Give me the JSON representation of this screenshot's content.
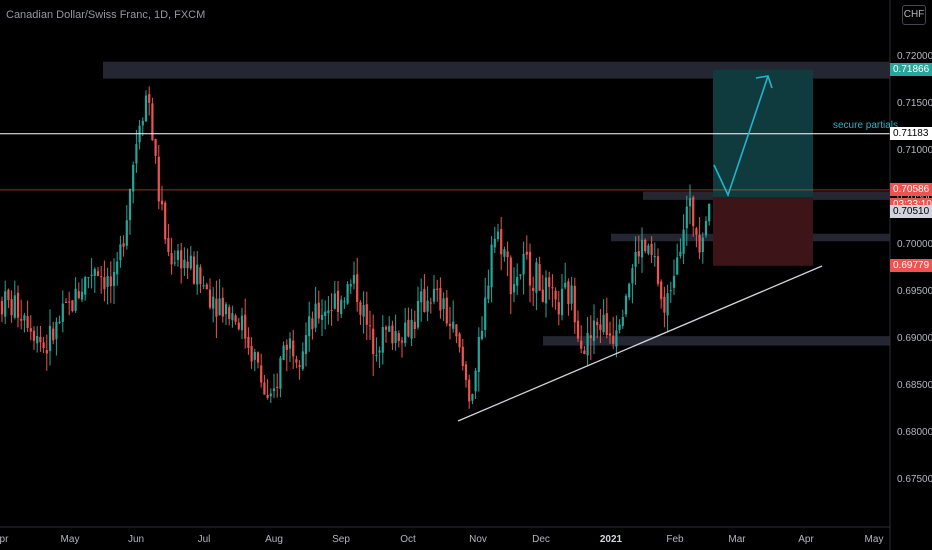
{
  "header": {
    "title": "Canadian Dollar/Swiss Franc, 1D, FXCM",
    "currency_badge": "CHF"
  },
  "price_axis": {
    "ticks": [
      "0.72000",
      "0.71500",
      "0.71000",
      "0.70500",
      "0.70000",
      "0.69500",
      "0.69000",
      "0.68500",
      "0.68000",
      "0.67500"
    ],
    "tags": [
      {
        "label": "0.71866",
        "bg": "#26a69a",
        "fg": "#ffffff",
        "kind": "target"
      },
      {
        "label": "0.71183",
        "bg": "#ffffff",
        "fg": "#000000",
        "kind": "horizontal-line"
      },
      {
        "label": "0.70586",
        "bg": "#ef5350",
        "fg": "#ffffff",
        "kind": "last-price"
      },
      {
        "label": "03:33:10",
        "bg": "#ef5350",
        "fg": "#ffffff",
        "kind": "countdown"
      },
      {
        "label": "0.70510",
        "bg": "#d1d4dc",
        "fg": "#000000",
        "kind": "entry"
      },
      {
        "label": "0.69779",
        "bg": "#ef5350",
        "fg": "#ffffff",
        "kind": "stop"
      }
    ]
  },
  "time_axis": {
    "labels": [
      "pr",
      "May",
      "Jun",
      "Jul",
      "Aug",
      "Sep",
      "Oct",
      "Nov",
      "Dec",
      "2021",
      "Feb",
      "Mar",
      "Apr",
      "May"
    ]
  },
  "annotations": {
    "secure_partials": "secure partials"
  },
  "colors": {
    "up": "#26a69a",
    "down": "#ef5350",
    "zone": "#2a2e39",
    "profit_zone": "#0f3b3f",
    "loss_zone": "#3d1518",
    "arrow": "#22b5c9",
    "trendline": "#d1d4dc"
  },
  "chart_data": {
    "type": "candlestick",
    "symbol": "CADCHF",
    "ylim": [
      0.6725,
      0.7225
    ],
    "last_price": 0.70586,
    "horizontal_line": 0.71183,
    "position": {
      "entry": 0.7051,
      "target": 0.71866,
      "stop": 0.69779
    },
    "zones": [
      {
        "from": 0.7177,
        "to": 0.7195
      },
      {
        "from": 0.7048,
        "to": 0.7057
      },
      {
        "from": 0.7004,
        "to": 0.7012
      },
      {
        "from": 0.6893,
        "to": 0.6903
      }
    ]
  }
}
